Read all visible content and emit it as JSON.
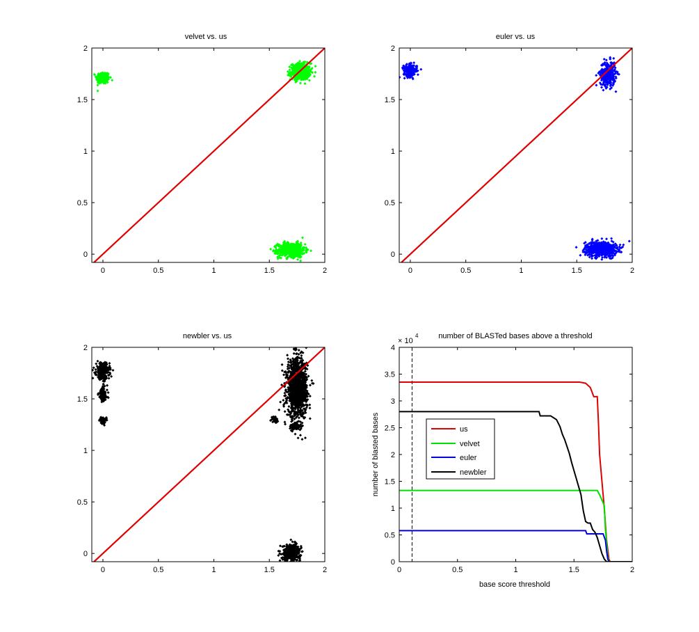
{
  "chart_data": [
    {
      "type": "scatter",
      "title": "velvet vs. us",
      "xlabel": "",
      "ylabel": "",
      "xlim": [
        -0.1,
        2
      ],
      "ylim": [
        -0.08,
        2
      ],
      "xticks": [
        0,
        0.5,
        1,
        1.5,
        2
      ],
      "xtick_labels": [
        "0",
        "0.5",
        "1",
        "1.5",
        "2"
      ],
      "yticks": [
        0,
        0.5,
        1,
        1.5,
        2
      ],
      "ytick_labels": [
        "0",
        "0.5",
        "1",
        "1.5",
        "2"
      ],
      "color": "#00ff00",
      "clusters": [
        {
          "cx": 0.0,
          "cy": 1.71,
          "sx": 0.03,
          "sy": 0.03,
          "n": 220
        },
        {
          "cx": 1.78,
          "cy": 1.77,
          "sx": 0.045,
          "sy": 0.04,
          "n": 380
        },
        {
          "cx": 1.7,
          "cy": 0.04,
          "sx": 0.06,
          "sy": 0.035,
          "n": 600
        }
      ],
      "reference_line": {
        "x": [
          -0.1,
          2
        ],
        "y": [
          -0.1,
          2
        ],
        "color": "#e00000"
      }
    },
    {
      "type": "scatter",
      "title": "euler vs. us",
      "xlabel": "",
      "ylabel": "",
      "xlim": [
        -0.1,
        2
      ],
      "ylim": [
        -0.08,
        2
      ],
      "xticks": [
        0,
        0.5,
        1,
        1.5,
        2
      ],
      "xtick_labels": [
        "0",
        "0.5",
        "1",
        "1.5",
        "2"
      ],
      "yticks": [
        0,
        0.5,
        1,
        1.5,
        2
      ],
      "ytick_labels": [
        "0",
        "0.5",
        "1",
        "1.5",
        "2"
      ],
      "color": "#0000ff",
      "clusters": [
        {
          "cx": 0.0,
          "cy": 1.78,
          "sx": 0.03,
          "sy": 0.03,
          "n": 200
        },
        {
          "cx": 1.78,
          "cy": 1.75,
          "sx": 0.035,
          "sy": 0.06,
          "n": 320
        },
        {
          "cx": 1.72,
          "cy": 0.05,
          "sx": 0.07,
          "sy": 0.035,
          "n": 700
        }
      ],
      "reference_line": {
        "x": [
          -0.1,
          2
        ],
        "y": [
          -0.1,
          2
        ],
        "color": "#e00000"
      }
    },
    {
      "type": "scatter",
      "title": "newbler vs. us",
      "xlabel": "",
      "ylabel": "",
      "xlim": [
        -0.1,
        2
      ],
      "ylim": [
        -0.08,
        2
      ],
      "xticks": [
        0,
        0.5,
        1,
        1.5,
        2
      ],
      "xtick_labels": [
        "0",
        "0.5",
        "1",
        "1.5",
        "2"
      ],
      "yticks": [
        0,
        0.5,
        1,
        1.5,
        2
      ],
      "ytick_labels": [
        "0",
        "0.5",
        "1",
        "1.5",
        "2"
      ],
      "color": "#000000",
      "clusters": [
        {
          "cx": 0.0,
          "cy": 1.77,
          "sx": 0.03,
          "sy": 0.04,
          "n": 220
        },
        {
          "cx": 0.0,
          "cy": 1.54,
          "sx": 0.02,
          "sy": 0.04,
          "n": 120
        },
        {
          "cx": 0.0,
          "cy": 1.29,
          "sx": 0.015,
          "sy": 0.015,
          "n": 60
        },
        {
          "cx": 1.75,
          "cy": 1.6,
          "sx": 0.045,
          "sy": 0.14,
          "n": 1200
        },
        {
          "cx": 1.55,
          "cy": 1.3,
          "sx": 0.015,
          "sy": 0.015,
          "n": 40
        },
        {
          "cx": 1.74,
          "cy": 1.23,
          "sx": 0.025,
          "sy": 0.02,
          "n": 80
        },
        {
          "cx": 1.7,
          "cy": 0.01,
          "sx": 0.04,
          "sy": 0.04,
          "n": 450
        }
      ],
      "reference_line": {
        "x": [
          -0.1,
          2
        ],
        "y": [
          -0.1,
          2
        ],
        "color": "#e00000"
      }
    },
    {
      "type": "line",
      "title": "number of BLASTed bases above a threshold",
      "xlabel": "base score threshold",
      "ylabel": "number of blasted bases",
      "multiplier_label": "× 10",
      "multiplier_exp": "4",
      "xlim": [
        0,
        2
      ],
      "ylim": [
        0,
        4
      ],
      "xticks": [
        0,
        0.5,
        1,
        1.5,
        2
      ],
      "xtick_labels": [
        "0",
        "0.5",
        "1",
        "1.5",
        "2"
      ],
      "yticks": [
        0,
        0.5,
        1,
        1.5,
        2,
        2.5,
        3,
        3.5,
        4
      ],
      "ytick_labels": [
        "0",
        "0.5",
        "1",
        "1.5",
        "2",
        "2.5",
        "3",
        "3.5",
        "4"
      ],
      "threshold_marker": {
        "x": 0.11,
        "style": "dashed"
      },
      "legend": {
        "position": "left-middle",
        "entries": [
          "us",
          "velvet",
          "euler",
          "newbler"
        ]
      },
      "series": [
        {
          "name": "us",
          "color": "#e00000",
          "x": [
            0,
            1.55,
            1.6,
            1.64,
            1.67,
            1.7,
            1.71,
            1.72,
            1.74,
            1.76,
            1.78,
            1.8,
            1.81,
            2
          ],
          "y": [
            3.35,
            3.35,
            3.33,
            3.25,
            3.08,
            3.08,
            2.6,
            2.0,
            1.5,
            1.0,
            0.4,
            0.05,
            0,
            0
          ]
        },
        {
          "name": "velvet",
          "color": "#00e000",
          "x": [
            0,
            1.7,
            1.72,
            1.75,
            1.76,
            1.77,
            1.78,
            1.79,
            1.8,
            2
          ],
          "y": [
            1.33,
            1.33,
            1.25,
            1.1,
            1.05,
            0.6,
            0.35,
            0.1,
            0,
            0
          ]
        },
        {
          "name": "euler",
          "color": "#0000e0",
          "x": [
            0,
            1.6,
            1.61,
            1.75,
            1.77,
            1.78,
            1.79,
            1.8,
            2
          ],
          "y": [
            0.58,
            0.58,
            0.52,
            0.52,
            0.4,
            0.2,
            0.05,
            0,
            0
          ]
        },
        {
          "name": "newbler",
          "color": "#000000",
          "x": [
            0,
            1.2,
            1.21,
            1.3,
            1.35,
            1.38,
            1.4,
            1.42,
            1.44,
            1.46,
            1.48,
            1.5,
            1.52,
            1.54,
            1.56,
            1.57,
            1.58,
            1.6,
            1.62,
            1.64,
            1.66,
            1.68,
            1.7,
            1.72,
            1.74,
            1.76,
            1.78,
            2
          ],
          "y": [
            2.8,
            2.8,
            2.72,
            2.72,
            2.65,
            2.52,
            2.38,
            2.28,
            2.15,
            2.02,
            1.85,
            1.7,
            1.55,
            1.4,
            1.25,
            1.1,
            0.95,
            0.75,
            0.72,
            0.72,
            0.6,
            0.55,
            0.45,
            0.3,
            0.15,
            0.05,
            0,
            0
          ]
        }
      ]
    }
  ]
}
